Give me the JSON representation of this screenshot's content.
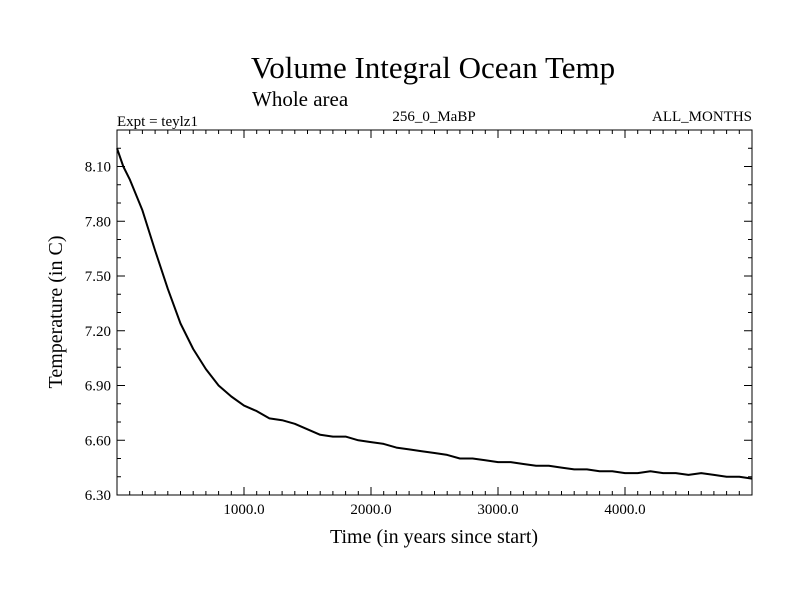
{
  "chart_data": {
    "type": "line",
    "title": "Volume Integral Ocean Temp",
    "subtitle": "Whole area",
    "header_left": "Expt = teylz1",
    "header_center": "256_0_MaBP",
    "header_right": "ALL_MONTHS",
    "xlabel": "Time (in years since start)",
    "ylabel": "Temperature (in C)",
    "xlim": [
      0,
      5000
    ],
    "ylim": [
      6.3,
      8.3
    ],
    "x_ticks": [
      1000,
      2000,
      3000,
      4000
    ],
    "x_tick_labels": [
      "1000.0",
      "2000.0",
      "3000.0",
      "4000.0"
    ],
    "y_ticks": [
      6.3,
      6.6,
      6.9,
      7.2,
      7.5,
      7.8,
      8.1
    ],
    "y_tick_labels": [
      "6.30",
      "6.60",
      "6.90",
      "7.20",
      "7.50",
      "7.80",
      "8.10"
    ],
    "series": [
      {
        "name": "Volume Integral Ocean Temp",
        "color": "#000000",
        "x": [
          0,
          50,
          100,
          200,
          300,
          400,
          500,
          600,
          700,
          800,
          900,
          1000,
          1100,
          1200,
          1300,
          1400,
          1500,
          1600,
          1700,
          1800,
          1900,
          2000,
          2100,
          2200,
          2300,
          2400,
          2500,
          2600,
          2700,
          2800,
          2900,
          3000,
          3100,
          3200,
          3300,
          3400,
          3500,
          3600,
          3700,
          3800,
          3900,
          4000,
          4100,
          4200,
          4300,
          4400,
          4500,
          4600,
          4700,
          4800,
          4900,
          5000
        ],
        "y": [
          8.2,
          8.1,
          8.03,
          7.86,
          7.64,
          7.43,
          7.24,
          7.1,
          6.99,
          6.9,
          6.84,
          6.79,
          6.76,
          6.72,
          6.71,
          6.69,
          6.66,
          6.63,
          6.62,
          6.62,
          6.6,
          6.59,
          6.58,
          6.56,
          6.55,
          6.54,
          6.53,
          6.52,
          6.5,
          6.5,
          6.49,
          6.48,
          6.48,
          6.47,
          6.46,
          6.46,
          6.45,
          6.44,
          6.44,
          6.43,
          6.43,
          6.42,
          6.42,
          6.43,
          6.42,
          6.42,
          6.41,
          6.42,
          6.41,
          6.4,
          6.4,
          6.39
        ]
      }
    ]
  }
}
